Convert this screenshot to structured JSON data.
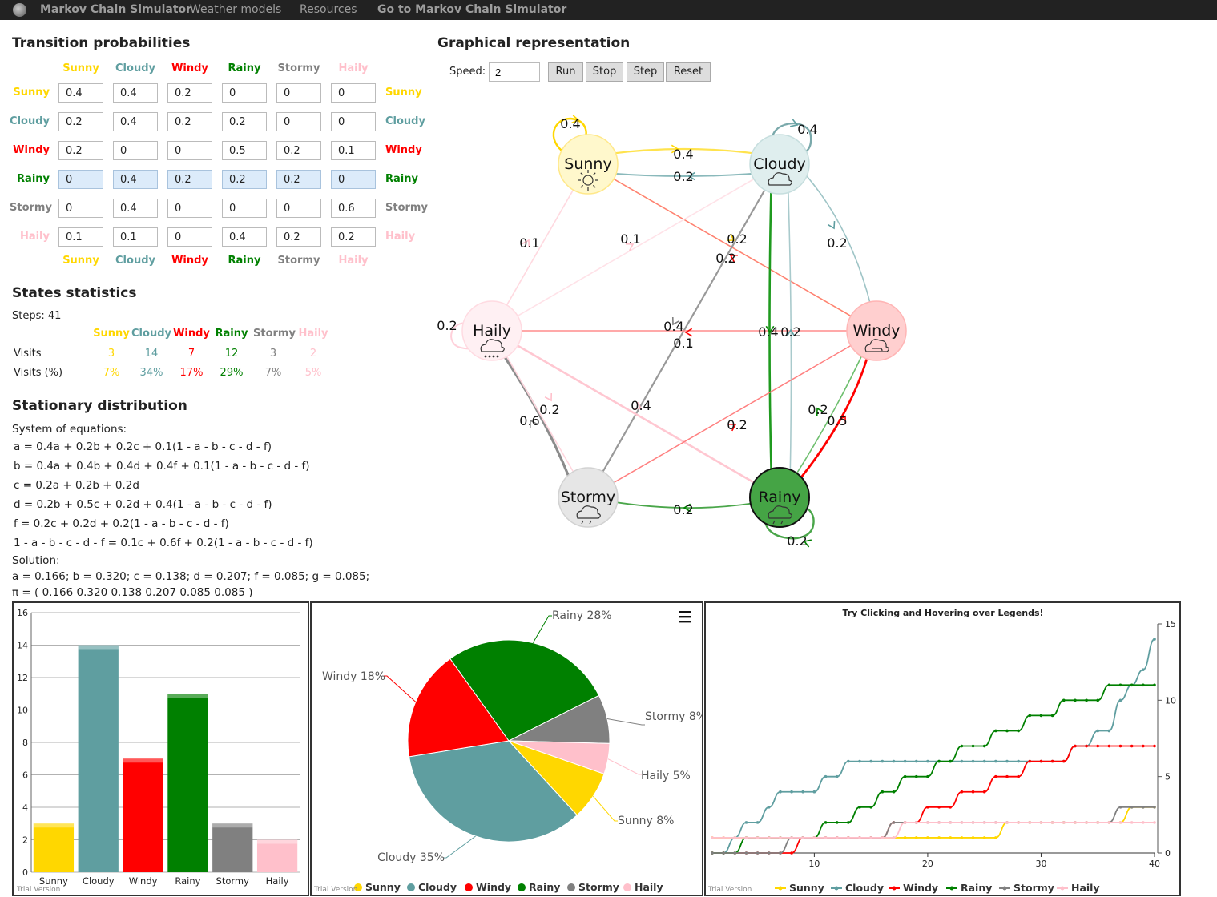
{
  "nav": {
    "brand": "Markov Chain Simulator",
    "links": [
      "Weather models",
      "Resources",
      "Go to Markov Chain Simulator"
    ]
  },
  "transition": {
    "title": "Transition probabilities",
    "states": [
      "Sunny",
      "Cloudy",
      "Windy",
      "Rainy",
      "Stormy",
      "Haily"
    ],
    "colors": [
      "#ffd700",
      "#5f9ea0",
      "#ff0000",
      "#008000",
      "#808080",
      "#ffc0cb"
    ],
    "matrix": [
      [
        "0.4",
        "0.4",
        "0.2",
        "0",
        "0",
        "0"
      ],
      [
        "0.2",
        "0.4",
        "0.2",
        "0.2",
        "0",
        "0"
      ],
      [
        "0.2",
        "0",
        "0",
        "0.5",
        "0.2",
        "0.1"
      ],
      [
        "0",
        "0.4",
        "0.2",
        "0.2",
        "0.2",
        "0"
      ],
      [
        "0",
        "0.4",
        "0",
        "0",
        "0",
        "0.6"
      ],
      [
        "0.1",
        "0.1",
        "0",
        "0.4",
        "0.2",
        "0.2"
      ]
    ],
    "highlight_row": 3
  },
  "stats": {
    "title": "States statistics",
    "steps_text": "Steps: 41",
    "visits_label": "Visits",
    "visits_pct_label": "Visits (%)",
    "visits": [
      "3",
      "14",
      "7",
      "12",
      "3",
      "2"
    ],
    "visits_pct": [
      "7%",
      "34%",
      "17%",
      "29%",
      "7%",
      "5%"
    ]
  },
  "stationary": {
    "title": "Stationary distribution",
    "lines": [
      "System of equations:",
      "a = 0.4a + 0.2b + 0.2c + 0.1(1 - a - b - c - d - f)",
      "b = 0.4a + 0.4b + 0.4d + 0.4f + 0.1(1 - a - b - c - d - f)",
      "c = 0.2a + 0.2b + 0.2d",
      "d = 0.2b + 0.5c + 0.2d + 0.4(1 - a - b - c - d - f)",
      "f = 0.2c + 0.2d + 0.2(1 - a - b - c - d - f)",
      "1 - a - b - c - d - f = 0.1c + 0.6f + 0.2(1 - a - b - c - d - f)",
      "Solution:",
      "a = 0.166; b = 0.320; c = 0.138; d = 0.207; f = 0.085; g = 0.085;",
      "π = ( 0.166 0.320 0.138 0.207 0.085 0.085 )"
    ]
  },
  "graph": {
    "title": "Graphical representation",
    "speed_label": "Speed:",
    "speed_value": "2",
    "buttons": [
      "Run",
      "Stop",
      "Step",
      "Reset"
    ],
    "node_labels": [
      "Sunny",
      "Cloudy",
      "Windy",
      "Rainy",
      "Stormy",
      "Haily"
    ],
    "active_node": "Rainy",
    "edge_labels": [
      {
        "text": "0.4",
        "color": "#ffd700"
      },
      {
        "text": "0.4",
        "color": "#5f9ea0"
      },
      {
        "text": "0.4",
        "color": "#ffd700"
      },
      {
        "text": "0.2",
        "color": "#5f9ea0"
      },
      {
        "text": "0.1",
        "color": "#ffc0cb"
      },
      {
        "text": "0.1",
        "color": "#ffc0cb"
      },
      {
        "text": "0.2",
        "color": "#ffd700"
      },
      {
        "text": "0.2",
        "color": "#ff0000"
      },
      {
        "text": "0.2",
        "color": "#5f9ea0"
      },
      {
        "text": "0.2",
        "color": "#ffc0cb"
      },
      {
        "text": "0.4",
        "color": "#808080"
      },
      {
        "text": "0.1",
        "color": "#ff0000"
      },
      {
        "text": "0.4",
        "color": "#008000"
      },
      {
        "text": "0.2",
        "color": "#5f9ea0"
      },
      {
        "text": "0.6",
        "color": "#808080"
      },
      {
        "text": "0.2",
        "color": "#ffc0cb"
      },
      {
        "text": "0.4",
        "color": "#808080"
      },
      {
        "text": "0.2",
        "color": "#ff0000"
      },
      {
        "text": "0.2",
        "color": "#008000"
      },
      {
        "text": "0.5",
        "color": "#ff0000"
      },
      {
        "text": "0.2",
        "color": "#008000"
      },
      {
        "text": "0.2",
        "color": "#008000"
      }
    ]
  },
  "bar_chart": {
    "trial": "Trial Version",
    "chart_data": {
      "type": "bar",
      "categories": [
        "Sunny",
        "Cloudy",
        "Windy",
        "Rainy",
        "Stormy",
        "Haily"
      ],
      "values": [
        3,
        14,
        7,
        11,
        3,
        2
      ],
      "ylim": [
        0,
        16
      ],
      "yticks": [
        0,
        2,
        4,
        6,
        8,
        10,
        12,
        14,
        16
      ],
      "grid": true
    }
  },
  "pie_chart": {
    "trial": "Trial Version",
    "menu_icon": "hamburger-icon",
    "chart_data": {
      "type": "pie",
      "slices": [
        {
          "name": "Rainy",
          "value": 28,
          "label": "Rainy 28%"
        },
        {
          "name": "Stormy",
          "value": 8,
          "label": "Stormy 8%"
        },
        {
          "name": "Haily",
          "value": 5,
          "label": "Haily 5%"
        },
        {
          "name": "Sunny",
          "value": 8,
          "label": "Sunny 8%"
        },
        {
          "name": "Cloudy",
          "value": 35,
          "label": "Cloudy 35%"
        },
        {
          "name": "Windy",
          "value": 18,
          "label": "Windy 18%"
        }
      ],
      "legend": [
        "Sunny",
        "Cloudy",
        "Windy",
        "Rainy",
        "Stormy",
        "Haily"
      ],
      "legend_position": "bottom"
    }
  },
  "line_chart": {
    "trial": "Trial Version",
    "chart_data": {
      "type": "line",
      "title": "Try Clicking and Hovering over Legends!",
      "x": [
        1,
        2,
        3,
        4,
        5,
        6,
        7,
        8,
        9,
        10,
        11,
        12,
        13,
        14,
        15,
        16,
        17,
        18,
        19,
        20,
        21,
        22,
        23,
        24,
        25,
        26,
        27,
        28,
        29,
        30,
        31,
        32,
        33,
        34,
        35,
        36,
        37,
        38,
        39,
        40
      ],
      "xlim": [
        1,
        40
      ],
      "xticks": [
        10,
        20,
        30,
        40
      ],
      "ylim": [
        0,
        15
      ],
      "yticks": [
        0,
        5,
        10,
        15
      ],
      "y_axis_side": "right",
      "legend_position": "bottom",
      "series": [
        {
          "name": "Sunny",
          "values": [
            1,
            1,
            1,
            1,
            1,
            1,
            1,
            1,
            1,
            1,
            1,
            1,
            1,
            1,
            1,
            1,
            1,
            1,
            1,
            1,
            1,
            1,
            1,
            1,
            1,
            1,
            2,
            2,
            2,
            2,
            2,
            2,
            2,
            2,
            2,
            2,
            2,
            3,
            3,
            3
          ]
        },
        {
          "name": "Cloudy",
          "values": [
            0,
            0,
            1,
            2,
            2,
            3,
            4,
            4,
            4,
            4,
            5,
            5,
            6,
            6,
            6,
            6,
            6,
            6,
            6,
            6,
            6,
            6,
            6,
            6,
            6,
            6,
            6,
            6,
            6,
            6,
            6,
            6,
            7,
            7,
            8,
            8,
            10,
            11,
            12,
            14
          ]
        },
        {
          "name": "Windy",
          "values": [
            0,
            0,
            0,
            0,
            0,
            0,
            0,
            0,
            1,
            1,
            1,
            1,
            1,
            1,
            1,
            1,
            2,
            2,
            2,
            3,
            3,
            3,
            4,
            4,
            4,
            5,
            5,
            5,
            6,
            6,
            6,
            6,
            7,
            7,
            7,
            7,
            7,
            7,
            7,
            7
          ]
        },
        {
          "name": "Rainy",
          "values": [
            0,
            0,
            0,
            1,
            1,
            1,
            1,
            1,
            1,
            1,
            2,
            2,
            2,
            3,
            3,
            4,
            4,
            5,
            5,
            5,
            6,
            6,
            7,
            7,
            7,
            8,
            8,
            8,
            9,
            9,
            9,
            10,
            10,
            10,
            10,
            11,
            11,
            11,
            11,
            11
          ]
        },
        {
          "name": "Stormy",
          "values": [
            0,
            0,
            0,
            0,
            0,
            0,
            0,
            1,
            1,
            1,
            1,
            1,
            1,
            1,
            1,
            1,
            2,
            2,
            2,
            2,
            2,
            2,
            2,
            2,
            2,
            2,
            2,
            2,
            2,
            2,
            2,
            2,
            2,
            2,
            2,
            2,
            3,
            3,
            3,
            3
          ]
        },
        {
          "name": "Haily",
          "values": [
            1,
            1,
            1,
            1,
            1,
            1,
            1,
            1,
            1,
            1,
            1,
            1,
            1,
            1,
            1,
            1,
            1,
            2,
            2,
            2,
            2,
            2,
            2,
            2,
            2,
            2,
            2,
            2,
            2,
            2,
            2,
            2,
            2,
            2,
            2,
            2,
            2,
            2,
            2,
            2
          ]
        }
      ]
    }
  }
}
